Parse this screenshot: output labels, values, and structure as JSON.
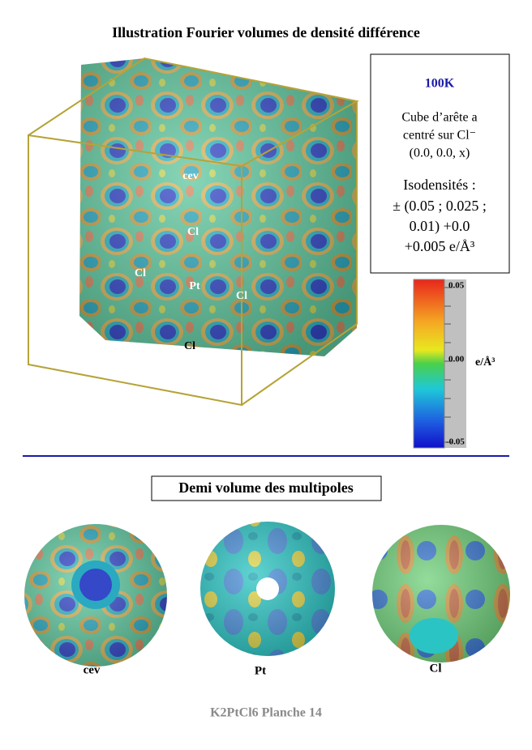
{
  "header": {
    "title": "Illustration Fourier volumes de densité différence"
  },
  "info": {
    "temperature": "100K",
    "lines": [
      "Cube d’arête a",
      "centré sur Cl⁻",
      "(0.0, 0.0, x)"
    ],
    "iso_lines": [
      "Isodensités :",
      "± (0.05 ; 0.025 ;",
      "0.01) +0.0",
      "+0.005 e/Å³"
    ]
  },
  "colorbar": {
    "labels": [
      "0.05",
      "0.00",
      "-0.05"
    ],
    "unit": "e/Å³"
  },
  "cube_labels": [
    "cev",
    "Cl",
    "Cl",
    "Pt",
    "Cl",
    "Cl"
  ],
  "section_title": "Demi volume des multipoles",
  "spheres": [
    {
      "label": "cev"
    },
    {
      "label": "Pt"
    },
    {
      "label": "Cl"
    }
  ],
  "footer": "K2PtCl6 Planche 14"
}
